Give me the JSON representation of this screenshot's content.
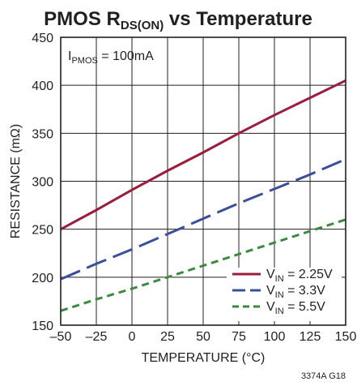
{
  "chart_data": {
    "type": "line",
    "title": "PMOS R",
    "title_subscript": "DS(ON)",
    "title_suffix": " vs Temperature",
    "xlabel": "TEMPERATURE (°C)",
    "ylabel": "RESISTANCE (mΩ)",
    "xlim": [
      -50,
      150
    ],
    "ylim": [
      150,
      450
    ],
    "x_ticks": [
      -50,
      -25,
      0,
      25,
      50,
      75,
      100,
      125,
      150
    ],
    "x_tick_labels": [
      "–50",
      "–25",
      "0",
      "25",
      "50",
      "75",
      "100",
      "125",
      "150"
    ],
    "y_ticks": [
      150,
      200,
      250,
      300,
      350,
      400,
      450
    ],
    "y_tick_labels": [
      "150",
      "200",
      "250",
      "300",
      "350",
      "400",
      "450"
    ],
    "grid": true,
    "legend_position": "bottom-right",
    "annotation": {
      "prefix": "I",
      "subscript": "PMOS",
      "suffix": " = 100mA"
    },
    "series": [
      {
        "name": "VIN = 2.25V",
        "label_prefix": "V",
        "label_subscript": "IN",
        "label_suffix": " = 2.25V",
        "color": "#9b1c3b",
        "dash": "solid",
        "x": [
          -50,
          -25,
          0,
          25,
          50,
          75,
          100,
          125,
          150
        ],
        "y": [
          250,
          270,
          291,
          311,
          330,
          350,
          369,
          387,
          405
        ]
      },
      {
        "name": "VIN = 3.3V",
        "label_prefix": "V",
        "label_subscript": "IN",
        "label_suffix": " = 3.3V",
        "color": "#3a4f9a",
        "dash": "long-dash",
        "x": [
          -50,
          -25,
          0,
          25,
          50,
          75,
          100,
          125,
          150
        ],
        "y": [
          198,
          214,
          229,
          245,
          261,
          277,
          292,
          307,
          323
        ]
      },
      {
        "name": "VIN = 5.5V",
        "label_prefix": "V",
        "label_subscript": "IN",
        "label_suffix": " = 5.5V",
        "color": "#3c8a3f",
        "dash": "short-dash",
        "x": [
          -50,
          -25,
          0,
          25,
          50,
          75,
          100,
          125,
          150
        ],
        "y": [
          165,
          177,
          188,
          200,
          212,
          224,
          236,
          248,
          260
        ]
      }
    ],
    "figure_code": "3374A G18"
  }
}
